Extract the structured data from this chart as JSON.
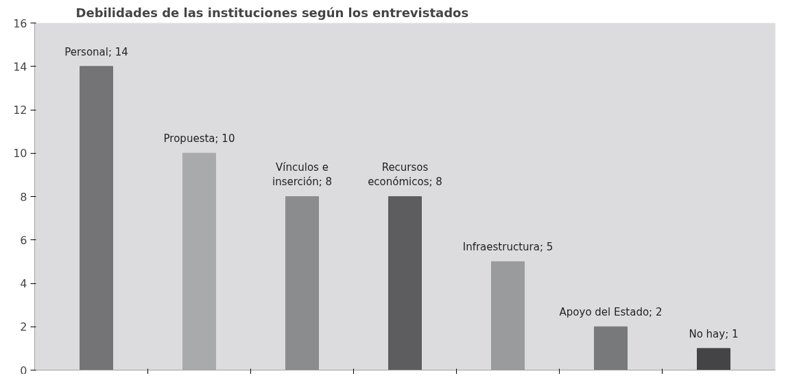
{
  "chart_data": {
    "type": "bar",
    "title": "Debilidades de las instituciones según los entrevistados",
    "categories": [
      null,
      null,
      null,
      null,
      null,
      null,
      null
    ],
    "values": [
      14,
      10,
      8,
      8,
      5,
      2,
      1
    ],
    "colors": [
      "#747476",
      "#a9aaac",
      "#8b8c8e",
      "#5d5d5f",
      "#9a9b9d",
      "#78797b",
      "#444446"
    ],
    "value_labels": [
      "Personal; 14",
      "Propuesta; 10",
      "Vínculos e\ninserción; 8",
      "Recursos\neconómicos; 8",
      "Infraestructura; 5",
      "Apoyo del Estado; 2",
      "No hay; 1"
    ],
    "ylim": [
      0,
      16
    ],
    "yticks": [
      0,
      2,
      4,
      6,
      8,
      10,
      12,
      14,
      16
    ],
    "grid": false
  }
}
